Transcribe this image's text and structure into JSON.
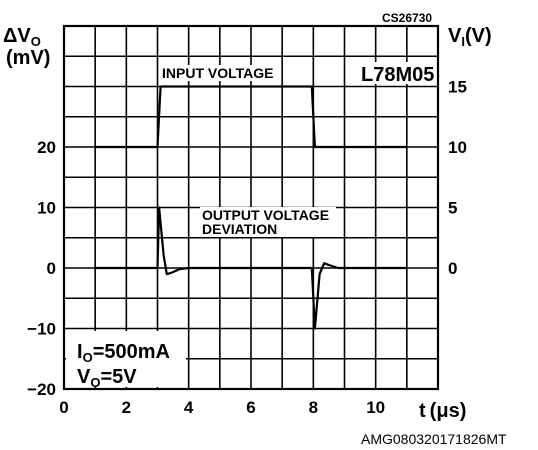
{
  "chart_data": {
    "type": "line",
    "code": "CS26730",
    "reference": "AMG080320171826MT",
    "device": "L78M05",
    "left_axis": {
      "label_line1": "ΔV",
      "label_line1_sub": "O",
      "label_line2": "(mV)",
      "range": [
        -20,
        40
      ],
      "ticks": [
        "20",
        "10",
        "0",
        "−10",
        "−20"
      ]
    },
    "right_axis": {
      "label_main": "V",
      "label_sub": "I",
      "label_unit": "(V)",
      "range": [
        -10,
        20
      ],
      "ticks": [
        "15",
        "10",
        "5",
        "0"
      ]
    },
    "x_axis": {
      "label_main": "t",
      "label_unit": "(μs)",
      "range": [
        0,
        12
      ],
      "ticks": [
        "0",
        "2",
        "4",
        "6",
        "8",
        "10"
      ]
    },
    "grid": true,
    "series": [
      {
        "name": "INPUT VOLTAGE",
        "axis": "right",
        "x": [
          1,
          3.0,
          3.1,
          7.95,
          8.05,
          11
        ],
        "y": [
          10,
          10,
          15,
          15,
          10,
          10
        ]
      },
      {
        "name": "OUTPUT VOLTAGE DEVIATION",
        "axis": "left",
        "x": [
          1,
          3.0,
          3.05,
          3.2,
          3.3,
          3.45,
          3.7,
          4,
          7.9,
          7.95,
          8.05,
          8.2,
          8.35,
          8.5,
          8.8,
          11
        ],
        "y": [
          0,
          0,
          10,
          2,
          -1,
          -0.8,
          -0.2,
          0,
          0,
          0,
          -10,
          -1,
          0.8,
          0.5,
          0,
          0
        ]
      }
    ],
    "annotations": {
      "input_label": "INPUT VOLTAGE",
      "output_label_line1": "OUTPUT VOLTAGE",
      "output_label_line2": "DEVIATION",
      "io_main": "I",
      "io_sub": "O",
      "io_value": "=500mA",
      "vo_main": "V",
      "vo_sub": "O",
      "vo_value": "=5V"
    }
  }
}
